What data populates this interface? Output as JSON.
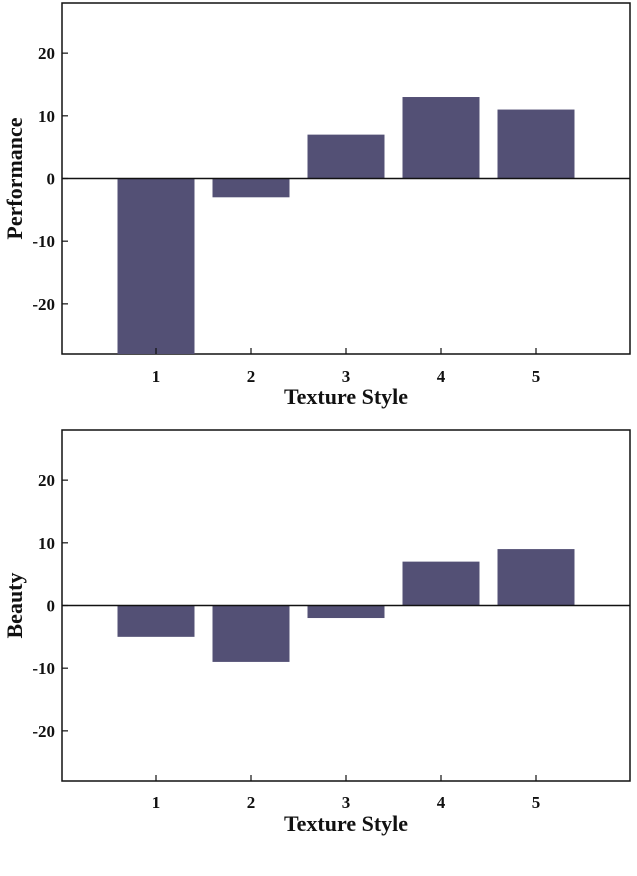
{
  "chart_data": [
    {
      "type": "bar",
      "title": "",
      "xlabel": "Texture Style",
      "ylabel": "Performance",
      "categories": [
        "1",
        "2",
        "3",
        "4",
        "5"
      ],
      "values": [
        -28,
        -3,
        7,
        13,
        11
      ],
      "ylim": [
        -28,
        28
      ],
      "yticks": [
        -20,
        -10,
        0,
        10,
        20
      ],
      "grid": false,
      "bar_color": "#535075"
    },
    {
      "type": "bar",
      "title": "",
      "xlabel": "Texture Style",
      "ylabel": "Beauty",
      "categories": [
        "1",
        "2",
        "3",
        "4",
        "5"
      ],
      "values": [
        -5,
        -9,
        -2,
        7,
        9
      ],
      "ylim": [
        -28,
        28
      ],
      "yticks": [
        -20,
        -10,
        0,
        10,
        20
      ],
      "grid": false,
      "bar_color": "#535075"
    }
  ]
}
